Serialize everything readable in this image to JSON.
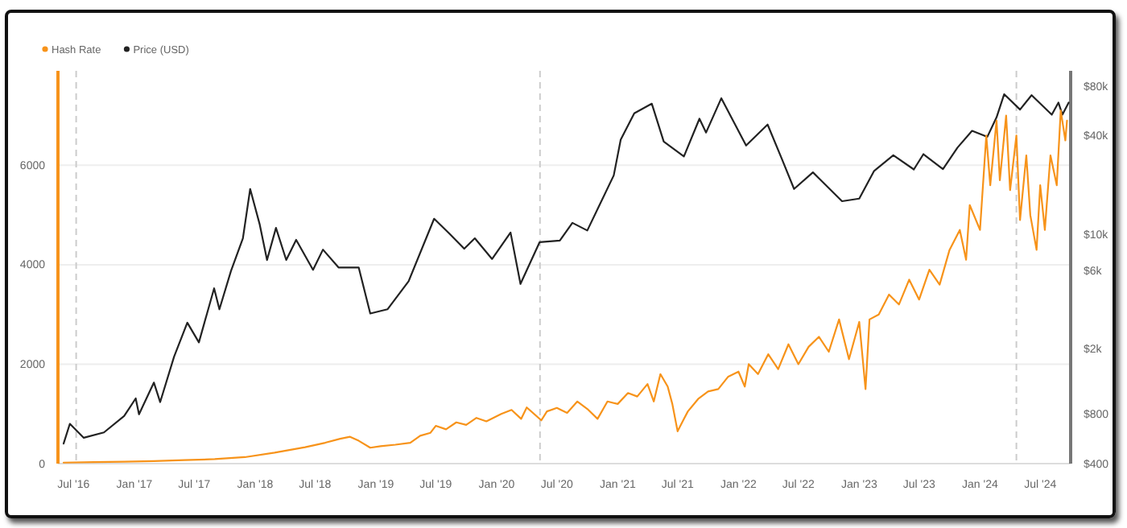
{
  "chart_data": {
    "type": "line",
    "legend": "top left",
    "grid": "y",
    "line_style": "solid",
    "marker": "none",
    "xlim": [
      "2016-05-15",
      "2024-10-01"
    ],
    "xticks": [
      {
        "value": "2016-07-01",
        "label": "Jul '16"
      },
      {
        "value": "2017-01-01",
        "label": "Jan '17"
      },
      {
        "value": "2017-07-01",
        "label": "Jul '17"
      },
      {
        "value": "2018-01-01",
        "label": "Jan '18"
      },
      {
        "value": "2018-07-01",
        "label": "Jul '18"
      },
      {
        "value": "2019-01-01",
        "label": "Jan '19"
      },
      {
        "value": "2019-07-01",
        "label": "Jul '19"
      },
      {
        "value": "2020-01-01",
        "label": "Jan '20"
      },
      {
        "value": "2020-07-01",
        "label": "Jul '20"
      },
      {
        "value": "2021-01-01",
        "label": "Jan '21"
      },
      {
        "value": "2021-07-01",
        "label": "Jul '21"
      },
      {
        "value": "2022-01-01",
        "label": "Jan '22"
      },
      {
        "value": "2022-07-01",
        "label": "Jul '22"
      },
      {
        "value": "2023-01-01",
        "label": "Jan '23"
      },
      {
        "value": "2023-07-01",
        "label": "Jul '23"
      },
      {
        "value": "2024-01-01",
        "label": "Jan '24"
      },
      {
        "value": "2024-07-01",
        "label": "Jul '24"
      }
    ],
    "ylim": [
      0,
      7900
    ],
    "yticks": [
      0,
      2000,
      4000,
      6000
    ],
    "y2lim": [
      400,
      100000
    ],
    "log": "y2",
    "y2ticks": [
      {
        "value": 400,
        "label": "$400"
      },
      {
        "value": 800,
        "label": "$800"
      },
      {
        "value": 2000,
        "label": "$2k"
      },
      {
        "value": 6000,
        "label": "$6k"
      },
      {
        "value": 10000,
        "label": "$10k"
      },
      {
        "value": 40000,
        "label": "$40k"
      },
      {
        "value": 80000,
        "label": "$80k"
      }
    ],
    "ref_lines": [
      {
        "axis": "x",
        "value": "2016-07-09",
        "color": "#cccccc",
        "line_style": "dashed"
      },
      {
        "axis": "x",
        "value": "2020-05-11",
        "color": "#cccccc",
        "line_style": "dashed"
      },
      {
        "axis": "x",
        "value": "2024-04-20",
        "color": "#cccccc",
        "line_style": "dashed"
      }
    ],
    "series": [
      {
        "name": "Price (USD)",
        "color": "#222222",
        "axis": "y2",
        "x": [
          "2016-06-01",
          "2016-06-20",
          "2016-08-01",
          "2016-10-01",
          "2016-12-01",
          "2017-01-05",
          "2017-01-15",
          "2017-03-01",
          "2017-03-20",
          "2017-05-01",
          "2017-06-10",
          "2017-07-15",
          "2017-08-30",
          "2017-09-15",
          "2017-10-20",
          "2017-11-25",
          "2017-12-17",
          "2018-01-15",
          "2018-02-06",
          "2018-03-05",
          "2018-04-05",
          "2018-05-05",
          "2018-06-25",
          "2018-07-25",
          "2018-09-10",
          "2018-11-10",
          "2018-12-15",
          "2019-02-05",
          "2019-04-10",
          "2019-06-26",
          "2019-08-10",
          "2019-09-25",
          "2019-10-27",
          "2019-12-18",
          "2020-02-12",
          "2020-03-13",
          "2020-05-10",
          "2020-07-10",
          "2020-08-17",
          "2020-10-01",
          "2020-12-20",
          "2021-01-10",
          "2021-02-20",
          "2021-04-14",
          "2021-05-20",
          "2021-07-20",
          "2021-09-05",
          "2021-09-25",
          "2021-11-10",
          "2022-01-24",
          "2022-03-30",
          "2022-05-12",
          "2022-06-18",
          "2022-08-14",
          "2022-11-10",
          "2023-01-01",
          "2023-02-15",
          "2023-04-14",
          "2023-06-15",
          "2023-07-14",
          "2023-09-11",
          "2023-10-25",
          "2023-12-08",
          "2024-01-23",
          "2024-02-20",
          "2024-03-14",
          "2024-05-01",
          "2024-06-05",
          "2024-08-05",
          "2024-08-25",
          "2024-09-06",
          "2024-09-25"
        ],
        "values": [
          530,
          700,
          575,
          620,
          780,
          1000,
          800,
          1250,
          950,
          1800,
          2900,
          2200,
          4700,
          3500,
          6000,
          9500,
          19000,
          11500,
          7000,
          11000,
          7000,
          9300,
          6100,
          8100,
          6300,
          6300,
          3300,
          3500,
          5200,
          12500,
          10200,
          8200,
          9500,
          7100,
          10300,
          5000,
          9000,
          9200,
          11800,
          10600,
          23000,
          38000,
          55000,
          63000,
          37000,
          30000,
          51000,
          42000,
          68000,
          35000,
          47000,
          29000,
          19000,
          24000,
          16000,
          16600,
          24500,
          30500,
          25000,
          31000,
          25100,
          34000,
          43000,
          39500,
          52000,
          72000,
          58000,
          71000,
          54000,
          64000,
          54000,
          64000
        ]
      },
      {
        "name": "Hash Rate",
        "color": "#f7931a",
        "x": [
          "2016-06-01",
          "2016-09-01",
          "2016-12-01",
          "2017-03-01",
          "2017-06-01",
          "2017-09-01",
          "2017-12-01",
          "2018-03-01",
          "2018-06-01",
          "2018-08-01",
          "2018-09-15",
          "2018-10-15",
          "2018-11-10",
          "2018-12-15",
          "2019-01-15",
          "2019-03-01",
          "2019-04-15",
          "2019-05-15",
          "2019-06-15",
          "2019-07-01",
          "2019-08-01",
          "2019-09-01",
          "2019-10-01",
          "2019-11-01",
          "2019-12-01",
          "2020-01-15",
          "2020-02-15",
          "2020-03-15",
          "2020-04-01",
          "2020-05-15",
          "2020-06-01",
          "2020-07-01",
          "2020-08-01",
          "2020-09-01",
          "2020-10-01",
          "2020-11-01",
          "2020-12-01",
          "2021-01-01",
          "2021-02-01",
          "2021-03-01",
          "2021-04-01",
          "2021-04-20",
          "2021-05-10",
          "2021-06-01",
          "2021-06-15",
          "2021-07-01",
          "2021-07-20",
          "2021-08-01",
          "2021-09-01",
          "2021-10-01",
          "2021-11-01",
          "2021-12-01",
          "2022-01-01",
          "2022-01-20",
          "2022-02-01",
          "2022-03-01",
          "2022-04-01",
          "2022-05-01",
          "2022-06-01",
          "2022-07-01",
          "2022-08-01",
          "2022-09-01",
          "2022-10-01",
          "2022-11-01",
          "2022-12-01",
          "2023-01-01",
          "2023-01-20",
          "2023-02-01",
          "2023-03-01",
          "2023-04-01",
          "2023-05-01",
          "2023-06-01",
          "2023-07-01",
          "2023-08-01",
          "2023-09-01",
          "2023-10-01",
          "2023-11-01",
          "2023-11-20",
          "2023-12-01",
          "2024-01-01",
          "2024-01-20",
          "2024-02-01",
          "2024-02-20",
          "2024-03-01",
          "2024-03-20",
          "2024-04-01",
          "2024-04-20",
          "2024-05-01",
          "2024-05-20",
          "2024-06-01",
          "2024-06-20",
          "2024-07-01",
          "2024-07-15",
          "2024-08-01",
          "2024-08-20",
          "2024-09-01",
          "2024-09-15",
          "2024-09-20"
        ],
        "values": [
          20,
          30,
          40,
          50,
          70,
          90,
          130,
          220,
          330,
          420,
          500,
          540,
          460,
          320,
          350,
          380,
          420,
          560,
          620,
          760,
          690,
          830,
          780,
          920,
          850,
          1000,
          1080,
          900,
          1130,
          870,
          1050,
          1120,
          1020,
          1250,
          1100,
          900,
          1250,
          1200,
          1420,
          1350,
          1600,
          1250,
          1800,
          1550,
          1200,
          650,
          900,
          1050,
          1300,
          1450,
          1500,
          1750,
          1850,
          1550,
          2000,
          1800,
          2200,
          1900,
          2400,
          2000,
          2350,
          2550,
          2250,
          2900,
          2100,
          2850,
          1500,
          2900,
          3000,
          3400,
          3200,
          3700,
          3300,
          3900,
          3600,
          4300,
          4700,
          4100,
          5200,
          4700,
          6600,
          5600,
          6900,
          5700,
          7000,
          5500,
          6600,
          4900,
          6200,
          5000,
          4300,
          5600,
          4700,
          6200,
          5600,
          7100,
          6500,
          6900
        ]
      }
    ]
  }
}
